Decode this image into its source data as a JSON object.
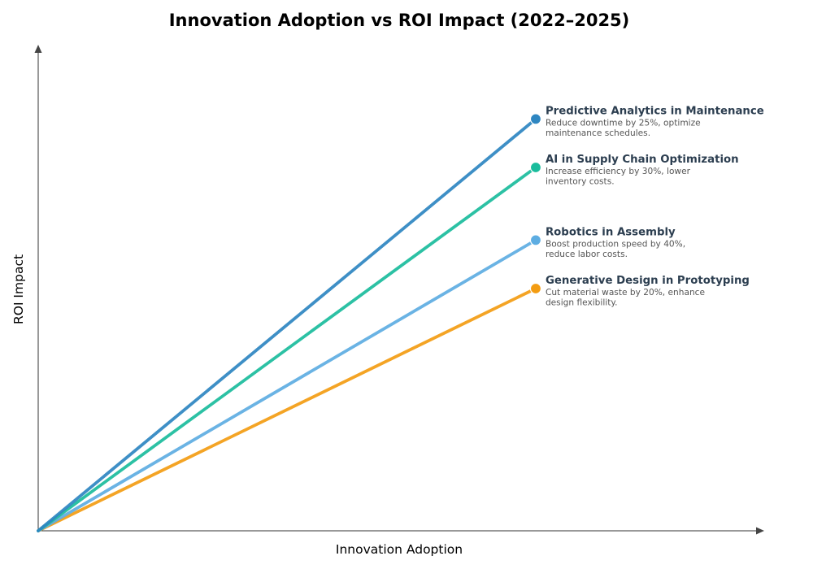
{
  "chart_data": {
    "type": "line",
    "title": "Innovation Adoption vs ROI Impact (2022–2025)",
    "xlabel": "Innovation Adoption",
    "ylabel": "ROI Impact",
    "xlim": [
      0,
      1.456
    ],
    "ylim": [
      0,
      1
    ],
    "grid": false,
    "ticks_shown": false,
    "series": [
      {
        "name": "Predictive Analytics in Maintenance",
        "description_lines": [
          "Reduce downtime by 25%, optimize",
          "maintenance schedules."
        ],
        "x": [
          0,
          1
        ],
        "y": [
          0,
          0.85
        ],
        "color": "#2e86c1"
      },
      {
        "name": "AI in Supply Chain Optimization",
        "description_lines": [
          "Increase efficiency by 30%, lower",
          "inventory costs."
        ],
        "x": [
          0,
          1
        ],
        "y": [
          0,
          0.75
        ],
        "color": "#1abc9c"
      },
      {
        "name": "Robotics in Assembly",
        "description_lines": [
          "Boost production speed by 40%,",
          "reduce labor costs."
        ],
        "x": [
          0,
          1
        ],
        "y": [
          0,
          0.6
        ],
        "color": "#5dade2"
      },
      {
        "name": "Generative Design in Prototyping",
        "description_lines": [
          "Cut material waste by 20%, enhance",
          "design flexibility."
        ],
        "x": [
          0,
          1
        ],
        "y": [
          0,
          0.5
        ],
        "color": "#f39c12"
      }
    ]
  }
}
